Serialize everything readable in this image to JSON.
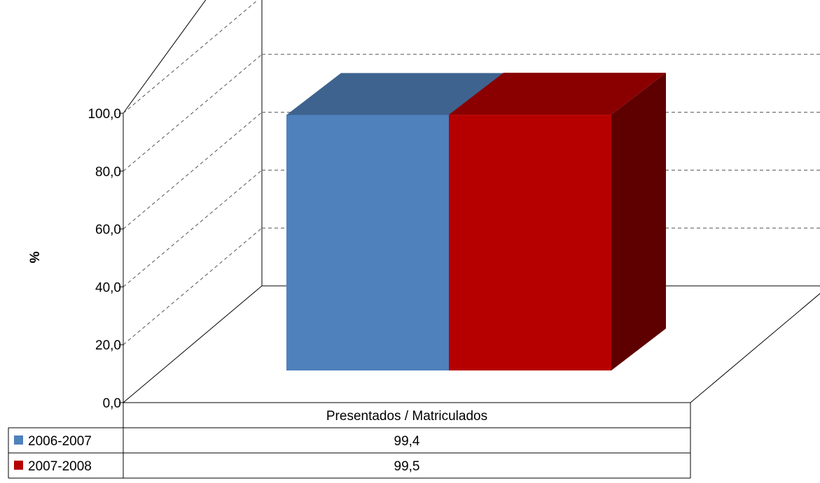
{
  "chart_data": {
    "type": "bar",
    "style": "3d-bar-with-data-table",
    "categories": [
      "Presentados / Matriculados"
    ],
    "series": [
      {
        "name": "2006-2007",
        "values": [
          99.4
        ],
        "value_labels": [
          "99,4"
        ],
        "color": "#4f81bd",
        "top_color": "#3e638f"
      },
      {
        "name": "2007-2008",
        "values": [
          99.5
        ],
        "value_labels": [
          "99,5"
        ],
        "color": "#b60000",
        "top_color": "#8a0000",
        "side_color": "#5e0000"
      }
    ],
    "xlabel": "",
    "ylabel": "%",
    "ylim": [
      0,
      100
    ],
    "yticks": [
      0,
      20,
      40,
      60,
      80,
      100
    ],
    "ytick_labels": [
      "0,0",
      "20,0",
      "40,0",
      "60,0",
      "80,0",
      "100,0"
    ],
    "grid": true,
    "legend": "data-table"
  }
}
